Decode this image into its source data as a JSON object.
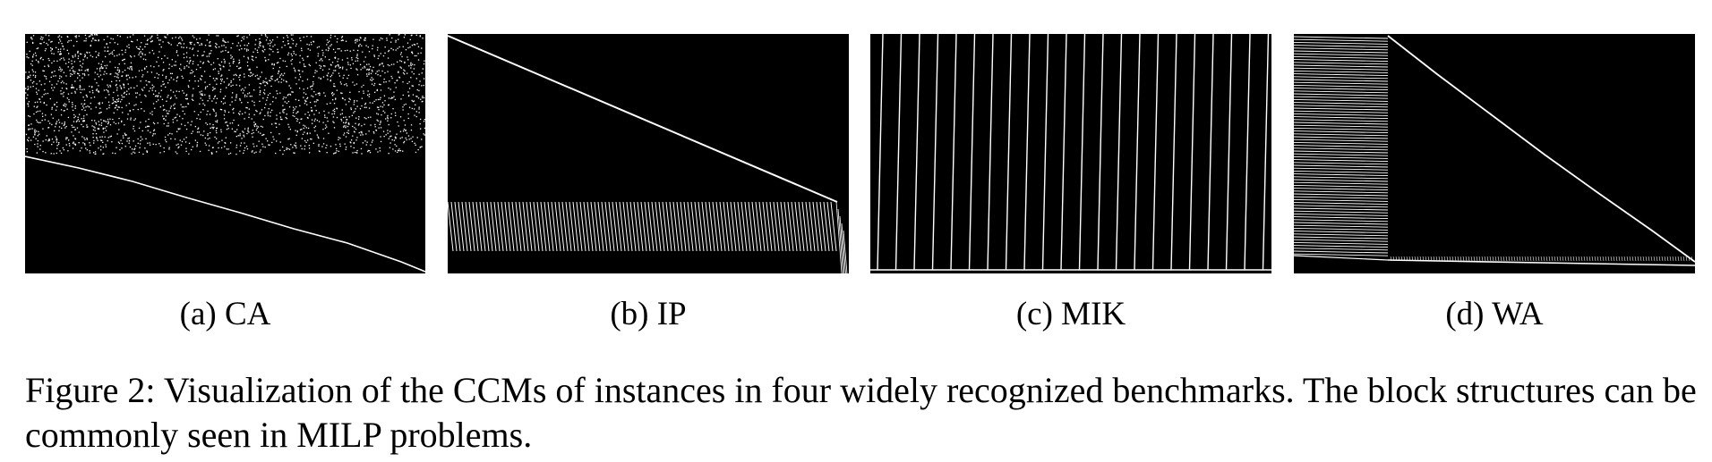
{
  "figure": {
    "panels": [
      {
        "id": "a",
        "caption": "(a) CA",
        "pattern": "sparse-dense-top-with-descending-diagonal"
      },
      {
        "id": "b",
        "caption": "(b) IP",
        "pattern": "descending-diagonal-with-striped-band"
      },
      {
        "id": "c",
        "caption": "(c) MIK",
        "pattern": "vertical-stripe-blocks"
      },
      {
        "id": "d",
        "caption": "(d) WA",
        "pattern": "left-block-with-descending-diagonal"
      }
    ],
    "caption": "Figure 2: Visualization of the CCMs of instances in four widely recognized benchmarks. The block structures can be commonly seen in MILP problems."
  },
  "colors": {
    "background": "#000000",
    "foreground": "#ffffff",
    "text": "#000000"
  }
}
